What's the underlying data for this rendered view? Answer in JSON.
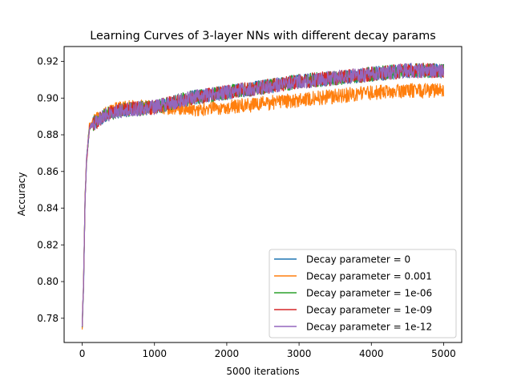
{
  "chart_data": {
    "type": "line",
    "title": "Learning Curves of 3-layer NNs with different decay params",
    "xlabel": "5000 iterations",
    "ylabel": "Accuracy",
    "xlim": [
      -250,
      5250
    ],
    "ylim": [
      0.7668,
      0.9281
    ],
    "xticks": [
      0,
      1000,
      2000,
      3000,
      4000,
      5000
    ],
    "yticks": [
      0.78,
      0.8,
      0.82,
      0.84,
      0.86,
      0.88,
      0.9,
      0.92
    ],
    "ytick_labels": [
      "0.78",
      "0.80",
      "0.82",
      "0.84",
      "0.86",
      "0.88",
      "0.90",
      "0.92"
    ],
    "grid": false,
    "legend_position": "lower-right",
    "series": [
      {
        "name": "Decay parameter = 0",
        "color": "#1f77b4",
        "x": [
          0,
          20,
          40,
          60,
          80,
          100,
          150,
          200,
          300,
          400,
          500,
          700,
          1000,
          1200,
          1500,
          2000,
          2500,
          3000,
          3500,
          4000,
          4500,
          5000
        ],
        "y": [
          0.776,
          0.8,
          0.845,
          0.866,
          0.875,
          0.884,
          0.886,
          0.887,
          0.89,
          0.892,
          0.893,
          0.894,
          0.895,
          0.897,
          0.9,
          0.903,
          0.906,
          0.909,
          0.911,
          0.913,
          0.915,
          0.915
        ],
        "band": 0.004
      },
      {
        "name": "Decay parameter = 0.001",
        "color": "#ff7f0e",
        "x": [
          0,
          20,
          40,
          60,
          80,
          100,
          150,
          200,
          300,
          400,
          500,
          700,
          1000,
          1200,
          1500,
          2000,
          2500,
          3000,
          3500,
          4000,
          4500,
          5000
        ],
        "y": [
          0.775,
          0.801,
          0.846,
          0.866,
          0.876,
          0.885,
          0.887,
          0.888,
          0.891,
          0.893,
          0.894,
          0.895,
          0.895,
          0.895,
          0.894,
          0.895,
          0.897,
          0.899,
          0.901,
          0.903,
          0.904,
          0.904
        ],
        "band": 0.004
      },
      {
        "name": "Decay parameter = 1e-06",
        "color": "#2ca02c",
        "x": [
          0,
          20,
          40,
          60,
          80,
          100,
          150,
          200,
          300,
          400,
          500,
          700,
          1000,
          1200,
          1500,
          2000,
          2500,
          3000,
          3500,
          4000,
          4500,
          5000
        ],
        "y": [
          0.776,
          0.8,
          0.845,
          0.866,
          0.875,
          0.884,
          0.886,
          0.887,
          0.89,
          0.892,
          0.893,
          0.894,
          0.895,
          0.897,
          0.9,
          0.903,
          0.906,
          0.909,
          0.911,
          0.913,
          0.915,
          0.915
        ],
        "band": 0.004
      },
      {
        "name": "Decay parameter = 1e-09",
        "color": "#d62728",
        "x": [
          0,
          20,
          40,
          60,
          80,
          100,
          150,
          200,
          300,
          400,
          500,
          700,
          1000,
          1200,
          1500,
          2000,
          2500,
          3000,
          3500,
          4000,
          4500,
          5000
        ],
        "y": [
          0.776,
          0.8,
          0.845,
          0.866,
          0.875,
          0.884,
          0.886,
          0.887,
          0.89,
          0.892,
          0.893,
          0.894,
          0.895,
          0.897,
          0.9,
          0.903,
          0.906,
          0.909,
          0.911,
          0.913,
          0.915,
          0.915
        ],
        "band": 0.004
      },
      {
        "name": "Decay parameter = 1e-12",
        "color": "#9467bd",
        "x": [
          0,
          20,
          40,
          60,
          80,
          100,
          150,
          200,
          300,
          400,
          500,
          700,
          1000,
          1200,
          1500,
          2000,
          2500,
          3000,
          3500,
          4000,
          4500,
          5000
        ],
        "y": [
          0.776,
          0.8,
          0.845,
          0.866,
          0.875,
          0.884,
          0.886,
          0.887,
          0.89,
          0.892,
          0.893,
          0.894,
          0.895,
          0.897,
          0.9,
          0.903,
          0.906,
          0.909,
          0.911,
          0.913,
          0.915,
          0.915
        ],
        "band": 0.004
      }
    ]
  }
}
